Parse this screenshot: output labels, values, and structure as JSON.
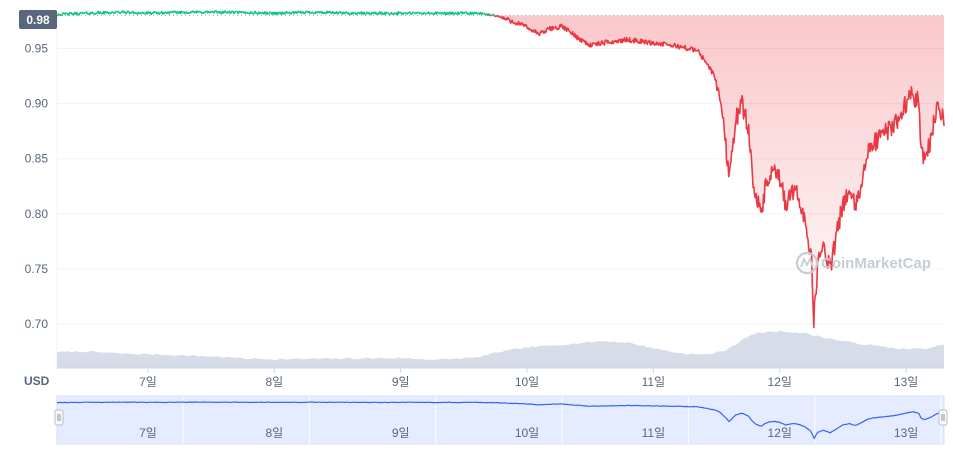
{
  "unit_label": "USD",
  "watermark": "CoinMarketCap",
  "colors": {
    "up": "#16c784",
    "down": "#ea3943",
    "volume": "#cfd6e4",
    "navigator_line": "#3861fb",
    "navigator_fill": "#e6ecff",
    "current_badge_bg": "#58667e",
    "grid": "#eff2f5",
    "text": "#58667e"
  },
  "current_price_label": "0.98",
  "navigator": {
    "labels": [
      "7일",
      "8일",
      "9일",
      "10일",
      "11일",
      "12일",
      "13일"
    ]
  },
  "chart_data": {
    "type": "line",
    "ylim": [
      0.66,
      0.985
    ],
    "yticks": [
      {
        "value": 0.95,
        "label": "0.95"
      },
      {
        "value": 0.9,
        "label": "0.90"
      },
      {
        "value": 0.85,
        "label": "0.85"
      },
      {
        "value": 0.8,
        "label": "0.80"
      },
      {
        "value": 0.75,
        "label": "0.75"
      },
      {
        "value": 0.7,
        "label": "0.70"
      }
    ],
    "xlim": [
      6.28,
      13.3
    ],
    "xticks": [
      {
        "value": 7,
        "label": "7일"
      },
      {
        "value": 8,
        "label": "8일"
      },
      {
        "value": 9,
        "label": "9일"
      },
      {
        "value": 10,
        "label": "10일"
      },
      {
        "value": 11,
        "label": "11일"
      },
      {
        "value": 12,
        "label": "12일"
      },
      {
        "value": 13,
        "label": "13일"
      }
    ],
    "baseline": 0.98,
    "grid": true,
    "series": [
      {
        "role": "price",
        "x": [
          6.28,
          6.5,
          6.8,
          7.0,
          7.3,
          7.6,
          8.0,
          8.3,
          8.6,
          9.0,
          9.3,
          9.6,
          9.75,
          9.85,
          9.95,
          10.1,
          10.18,
          10.28,
          10.4,
          10.5,
          10.6,
          10.8,
          11.0,
          11.2,
          11.35,
          11.45,
          11.5,
          11.53,
          11.56,
          11.6,
          11.65,
          11.7,
          11.75,
          11.8,
          11.85,
          11.9,
          11.95,
          12.0,
          12.05,
          12.1,
          12.15,
          12.2,
          12.25,
          12.27,
          12.3,
          12.35,
          12.4,
          12.45,
          12.5,
          12.55,
          12.6,
          12.65,
          12.7,
          12.75,
          12.8,
          12.85,
          12.9,
          12.95,
          13.0,
          13.05,
          13.1,
          13.12,
          13.15,
          13.2,
          13.25,
          13.3
        ],
        "y": [
          0.981,
          0.982,
          0.983,
          0.982,
          0.983,
          0.983,
          0.982,
          0.983,
          0.982,
          0.982,
          0.982,
          0.982,
          0.98,
          0.976,
          0.972,
          0.963,
          0.968,
          0.97,
          0.96,
          0.953,
          0.955,
          0.958,
          0.955,
          0.952,
          0.948,
          0.932,
          0.92,
          0.905,
          0.875,
          0.835,
          0.885,
          0.9,
          0.88,
          0.82,
          0.8,
          0.83,
          0.838,
          0.83,
          0.808,
          0.82,
          0.815,
          0.795,
          0.76,
          0.702,
          0.755,
          0.77,
          0.75,
          0.78,
          0.81,
          0.82,
          0.805,
          0.83,
          0.855,
          0.865,
          0.87,
          0.875,
          0.88,
          0.89,
          0.9,
          0.91,
          0.9,
          0.86,
          0.85,
          0.87,
          0.9,
          0.885
        ]
      },
      {
        "role": "volume",
        "x": [
          6.28,
          6.5,
          6.8,
          7.0,
          7.5,
          7.8,
          8.0,
          8.5,
          9.0,
          9.3,
          9.6,
          9.8,
          10.0,
          10.3,
          10.6,
          10.8,
          11.0,
          11.2,
          11.4,
          11.55,
          11.7,
          11.8,
          12.0,
          12.2,
          12.4,
          12.6,
          12.8,
          13.0,
          13.2,
          13.3
        ],
        "y": [
          0.0145,
          0.015,
          0.013,
          0.0125,
          0.0105,
          0.0085,
          0.008,
          0.0085,
          0.009,
          0.0075,
          0.0095,
          0.015,
          0.0185,
          0.0215,
          0.0245,
          0.023,
          0.018,
          0.0135,
          0.012,
          0.015,
          0.025,
          0.0315,
          0.0335,
          0.0315,
          0.0265,
          0.0225,
          0.0195,
          0.017,
          0.018,
          0.0215
        ]
      }
    ]
  }
}
